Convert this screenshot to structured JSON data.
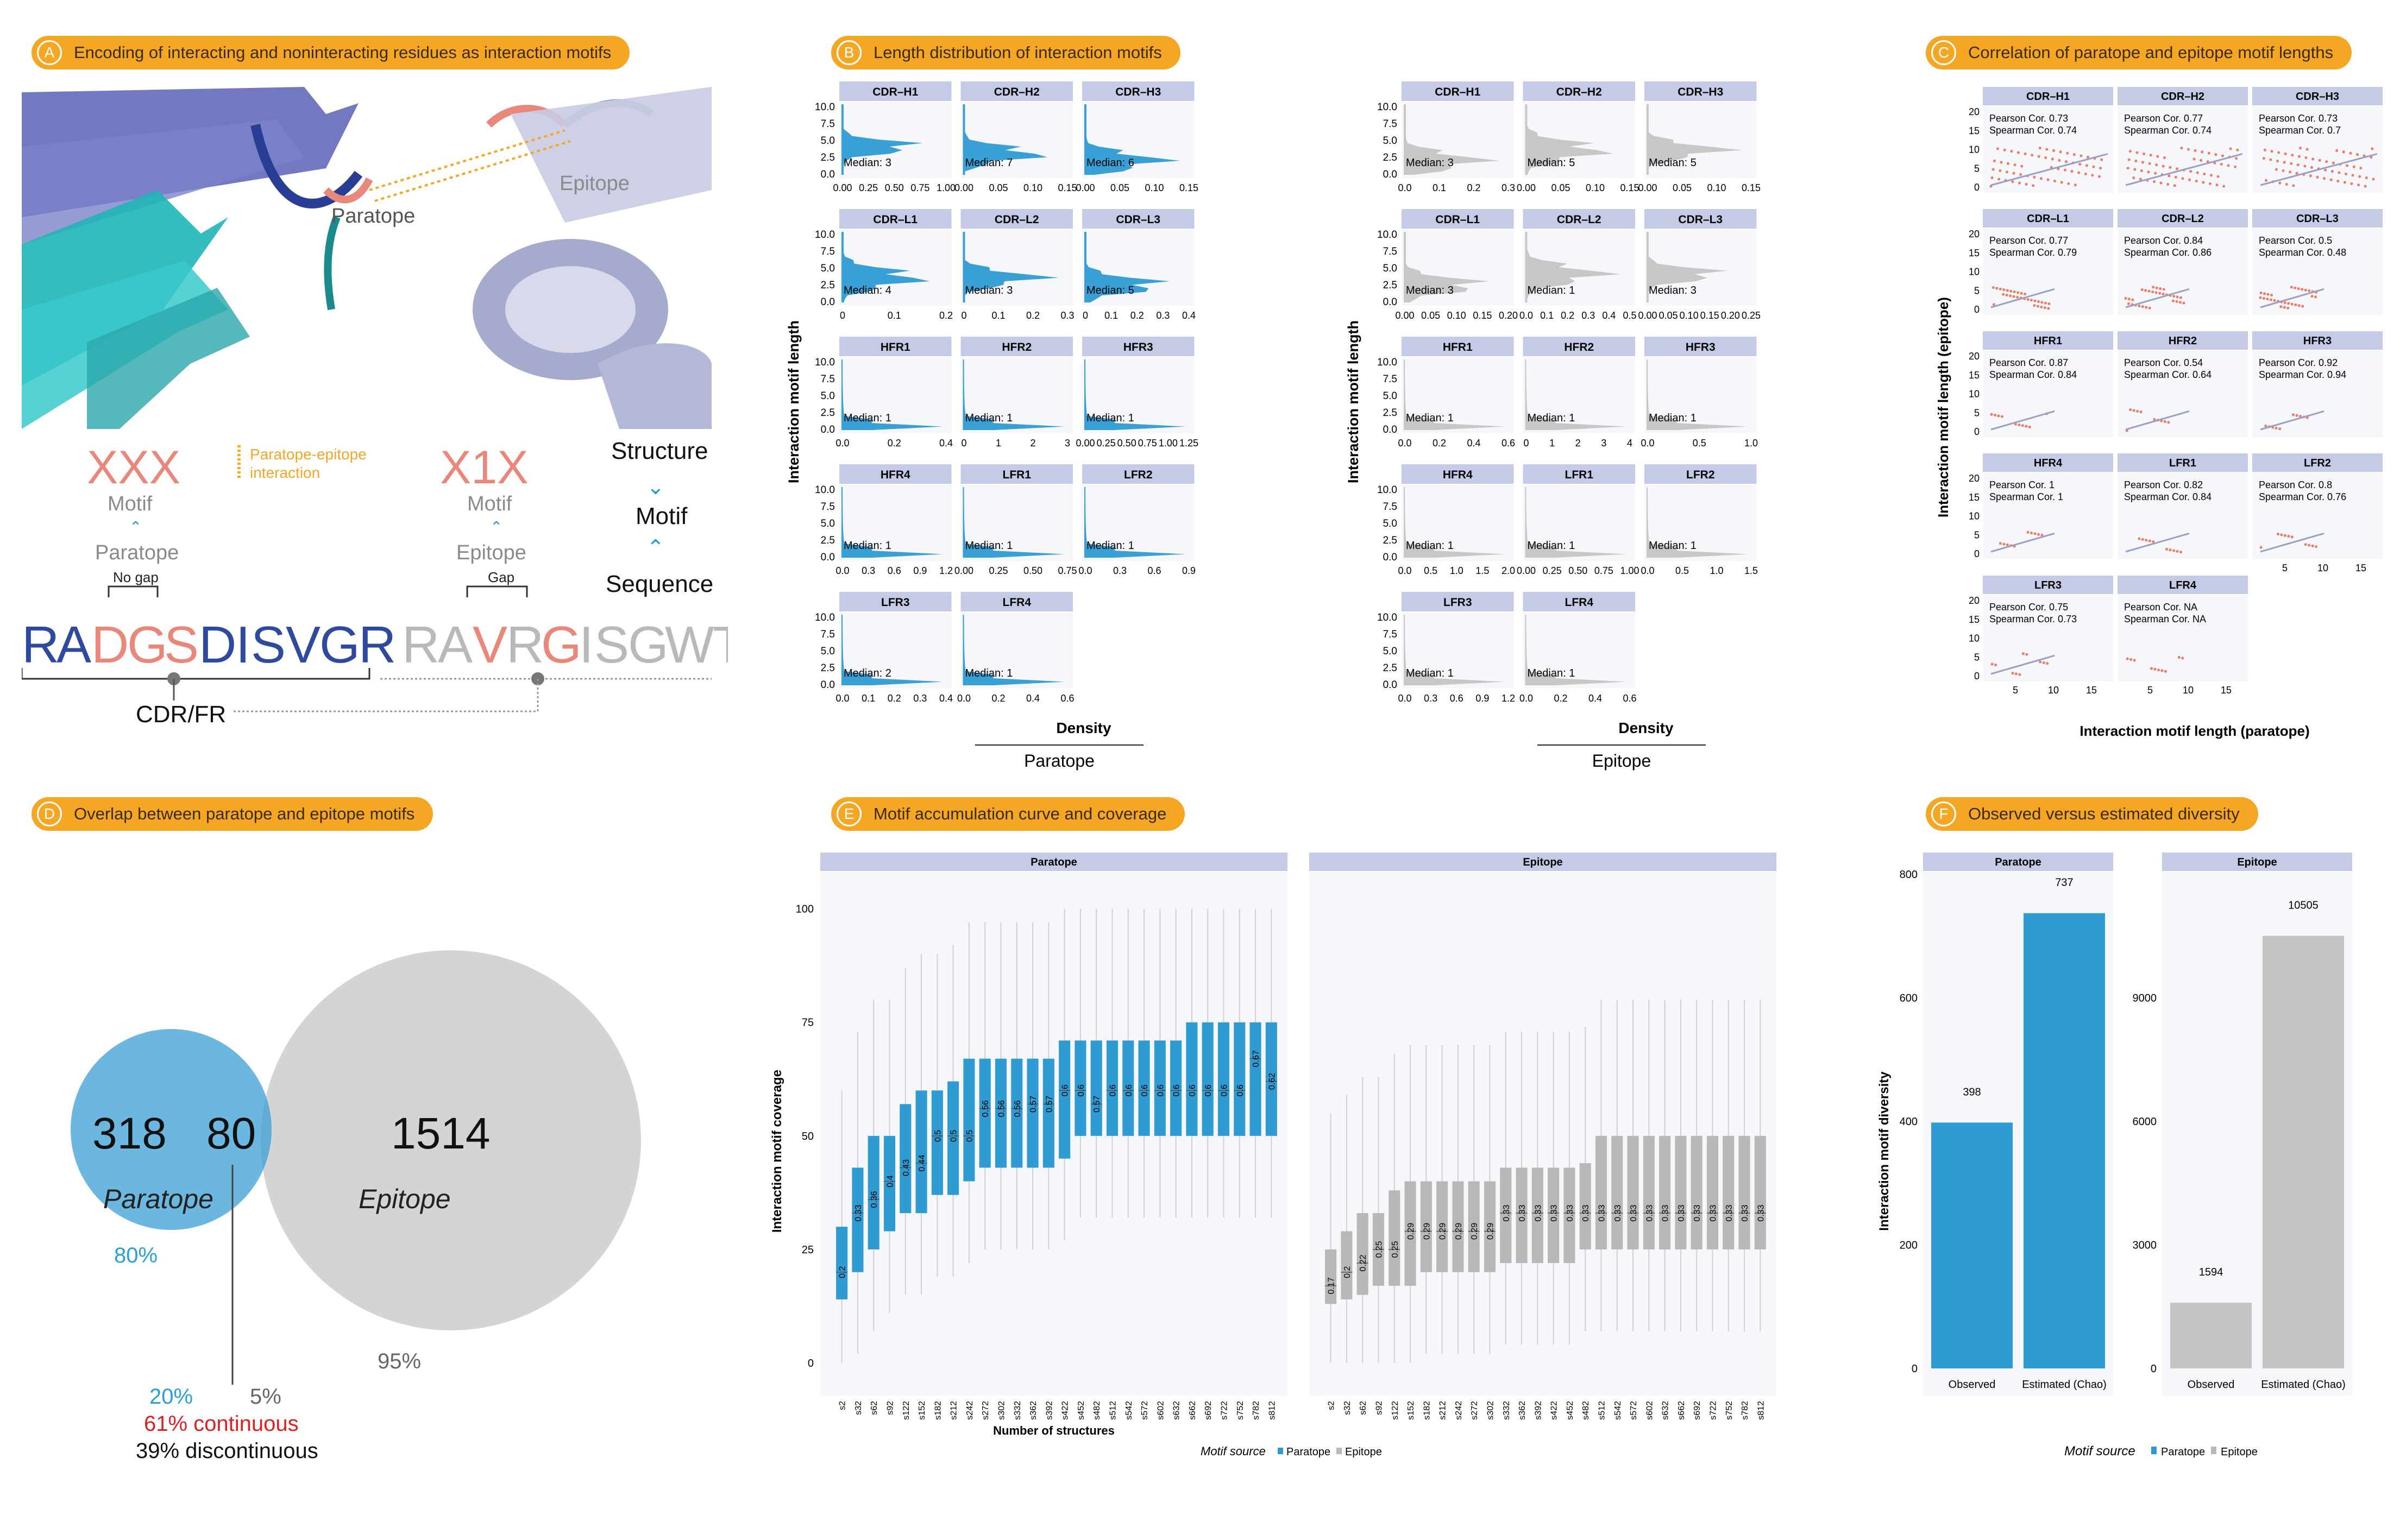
{
  "panels": {
    "A": {
      "letter": "A",
      "title": "Encoding of interacting and noninteracting residues as interaction motifs"
    },
    "B": {
      "letter": "B",
      "title": "Length distribution of interaction motifs"
    },
    "C": {
      "letter": "C",
      "title": "Correlation of paratope and epitope motif lengths"
    },
    "D": {
      "letter": "D",
      "title": "Overlap between paratope and epitope motifs"
    },
    "E": {
      "letter": "E",
      "title": "Motif accumulation curve and coverage"
    },
    "F": {
      "letter": "F",
      "title": "Observed versus estimated diversity"
    }
  },
  "panelA": {
    "paratope_label": "Paratope",
    "epitope_label": "Epitope",
    "motif_left": "XXX",
    "motif_right": "X1X",
    "motif_word": "Motif",
    "paratope_word": "Paratope",
    "epitope_word": "Epitope",
    "interaction_legend": "Paratope-epitope interaction",
    "no_gap": "No gap",
    "gap": "Gap",
    "structure": "Structure",
    "motif": "Motif",
    "sequence": "Sequence",
    "seq_left": [
      "R",
      "A",
      "D",
      "G",
      "S",
      "D",
      "I",
      "S",
      "V",
      "G",
      "R"
    ],
    "seq_right": [
      "R",
      "A",
      "V",
      "R",
      "G",
      "I",
      "S",
      "G",
      "W",
      "T"
    ],
    "cdr_fr": "CDR/FR",
    "colors": {
      "blue": "#2e4a9e",
      "salmon": "#e8877a",
      "grey": "#b9b9b9",
      "orange": "#f5a623",
      "cyan": "#2a9fd6"
    }
  },
  "panelB": {
    "ylabel": "Interaction motif length",
    "xlabel": "Density",
    "groups": [
      {
        "name": "Paratope",
        "color": "#2e9bd3",
        "facets": [
          {
            "name": "CDR–H1",
            "median": "Median: 3",
            "ticks": [
              "0.00",
              "0.25",
              "0.50",
              "0.75",
              "1.00"
            ],
            "ylim": 10
          },
          {
            "name": "CDR–H2",
            "median": "Median: 7",
            "ticks": [
              "0.00",
              "0.05",
              "0.10",
              "0.15"
            ],
            "ylim": 12
          },
          {
            "name": "CDR–H3",
            "median": "Median: 6",
            "ticks": [
              "0.00",
              "0.05",
              "0.10",
              "0.15"
            ],
            "ylim": 10
          },
          {
            "name": "CDR–L1",
            "median": "Median: 4",
            "ticks": [
              "0",
              "0.1",
              "0.2"
            ],
            "ylim": 10
          },
          {
            "name": "CDR–L2",
            "median": "Median: 3",
            "ticks": [
              "0",
              "0.1",
              "0.2",
              "0.3"
            ],
            "ylim": 10
          },
          {
            "name": "CDR–L3",
            "median": "Median: 5",
            "ticks": [
              "0",
              "0.1",
              "0.2",
              "0.3",
              "0.4"
            ],
            "ylim": 10
          },
          {
            "name": "HFR1",
            "median": "Median: 1",
            "ticks": [
              "0.0",
              "0.2",
              "0.4"
            ],
            "ylim": 10
          },
          {
            "name": "HFR2",
            "median": "Median: 1",
            "ticks": [
              "0",
              "1",
              "2",
              "3"
            ],
            "ylim": 10
          },
          {
            "name": "HFR3",
            "median": "Median: 1",
            "ticks": [
              "0.00",
              "0.25",
              "0.50",
              "0.75",
              "1.00",
              "1.25"
            ],
            "ylim": 10
          },
          {
            "name": "HFR4",
            "median": "Median: 1",
            "ticks": [
              "0.0",
              "0.3",
              "0.6",
              "0.9",
              "1.2"
            ],
            "ylim": 10
          },
          {
            "name": "LFR1",
            "median": "Median: 1",
            "ticks": [
              "0.00",
              "0.25",
              "0.50",
              "0.75"
            ],
            "ylim": 10
          },
          {
            "name": "LFR2",
            "median": "Median: 1",
            "ticks": [
              "0.0",
              "0.3",
              "0.6",
              "0.9"
            ],
            "ylim": 10
          },
          {
            "name": "LFR3",
            "median": "Median: 2",
            "ticks": [
              "0.0",
              "0.1",
              "0.2",
              "0.3",
              "0.4"
            ],
            "ylim": 10
          },
          {
            "name": "LFR4",
            "median": "Median: 1",
            "ticks": [
              "0.0",
              "0.2",
              "0.4",
              "0.6"
            ],
            "ylim": 10
          }
        ]
      },
      {
        "name": "Epitope",
        "color": "#c4c4c4",
        "facets": [
          {
            "name": "CDR–H1",
            "median": "Median: 3",
            "ticks": [
              "0.0",
              "0.1",
              "0.2",
              "0.3"
            ],
            "ylim": 10
          },
          {
            "name": "CDR–H2",
            "median": "Median: 5",
            "ticks": [
              "0.00",
              "0.05",
              "0.10",
              "0.15"
            ],
            "ylim": 10
          },
          {
            "name": "CDR–H3",
            "median": "Median: 5",
            "ticks": [
              "0.00",
              "0.05",
              "0.10",
              "0.15"
            ],
            "ylim": 10
          },
          {
            "name": "CDR–L1",
            "median": "Median: 3",
            "ticks": [
              "0.00",
              "0.05",
              "0.10",
              "0.15",
              "0.20"
            ],
            "ylim": 10
          },
          {
            "name": "CDR–L2",
            "median": "Median: 1",
            "ticks": [
              "0.0",
              "0.1",
              "0.2",
              "0.3",
              "0.4",
              "0.5"
            ],
            "ylim": 10
          },
          {
            "name": "CDR–L3",
            "median": "Median: 3",
            "ticks": [
              "0.00",
              "0.05",
              "0.10",
              "0.15",
              "0.20",
              "0.25"
            ],
            "ylim": 10
          },
          {
            "name": "HFR1",
            "median": "Median: 1",
            "ticks": [
              "0.0",
              "0.2",
              "0.4",
              "0.6"
            ],
            "ylim": 10
          },
          {
            "name": "HFR2",
            "median": "Median: 1",
            "ticks": [
              "0",
              "1",
              "2",
              "3",
              "4"
            ],
            "ylim": 10
          },
          {
            "name": "HFR3",
            "median": "Median: 1",
            "ticks": [
              "0.0",
              "0.5",
              "1.0"
            ],
            "ylim": 10
          },
          {
            "name": "HFR4",
            "median": "Median: 1",
            "ticks": [
              "0.0",
              "0.5",
              "1.0",
              "1.5",
              "2.0"
            ],
            "ylim": 10
          },
          {
            "name": "LFR1",
            "median": "Median: 1",
            "ticks": [
              "0.00",
              "0.25",
              "0.50",
              "0.75",
              "1.00"
            ],
            "ylim": 10
          },
          {
            "name": "LFR2",
            "median": "Median: 1",
            "ticks": [
              "0.0",
              "0.5",
              "1.0",
              "1.5"
            ],
            "ylim": 10
          },
          {
            "name": "LFR3",
            "median": "Median: 1",
            "ticks": [
              "0.0",
              "0.3",
              "0.6",
              "0.9",
              "1.2"
            ],
            "ylim": 10
          },
          {
            "name": "LFR4",
            "median": "Median: 1",
            "ticks": [
              "0.0",
              "0.2",
              "0.4",
              "0.6"
            ],
            "ylim": 10
          }
        ]
      }
    ],
    "yticks": [
      "0.0",
      "2.5",
      "5.0",
      "7.5",
      "10.0"
    ]
  },
  "panelC": {
    "ylabel": "Interaction motif length (epitope)",
    "xlabel": "Interaction motif length (paratope)",
    "facets": [
      {
        "name": "CDR–H1",
        "pearson": "Pearson Cor. 0.73",
        "spearman": "Spearman Cor. 0.74"
      },
      {
        "name": "CDR–H2",
        "pearson": "Pearson Cor. 0.77",
        "spearman": "Spearman Cor. 0.74"
      },
      {
        "name": "CDR–H3",
        "pearson": "Pearson Cor. 0.73",
        "spearman": "Spearman Cor. 0.7"
      },
      {
        "name": "CDR–L1",
        "pearson": "Pearson Cor. 0.77",
        "spearman": "Spearman Cor. 0.79"
      },
      {
        "name": "CDR–L2",
        "pearson": "Pearson Cor. 0.84",
        "spearman": "Spearman Cor. 0.86"
      },
      {
        "name": "CDR–L3",
        "pearson": "Pearson Cor. 0.5",
        "spearman": "Spearman Cor. 0.48"
      },
      {
        "name": "HFR1",
        "pearson": "Pearson Cor. 0.87",
        "spearman": "Spearman Cor. 0.84"
      },
      {
        "name": "HFR2",
        "pearson": "Pearson Cor. 0.54",
        "spearman": "Spearman Cor. 0.64"
      },
      {
        "name": "HFR3",
        "pearson": "Pearson Cor. 0.92",
        "spearman": "Spearman Cor. 0.94"
      },
      {
        "name": "HFR4",
        "pearson": "Pearson Cor. 1",
        "spearman": "Spearman Cor. 1"
      },
      {
        "name": "LFR1",
        "pearson": "Pearson Cor. 0.82",
        "spearman": "Spearman Cor. 0.84"
      },
      {
        "name": "LFR2",
        "pearson": "Pearson Cor. 0.8",
        "spearman": "Spearman Cor. 0.76"
      },
      {
        "name": "LFR3",
        "pearson": "Pearson Cor. 0.75",
        "spearman": "Spearman Cor. 0.73"
      },
      {
        "name": "LFR4",
        "pearson": "Pearson Cor. NA",
        "spearman": "Spearman Cor. NA"
      }
    ],
    "yticks": [
      "0",
      "5",
      "10",
      "15",
      "20"
    ],
    "xticks": [
      "5",
      "10",
      "15"
    ]
  },
  "panelD": {
    "left_count": "318",
    "overlap_count": "80",
    "right_count": "1514",
    "left_name": "Paratope",
    "right_name": "Epitope",
    "left_pct": "80%",
    "right_pct": "95%",
    "overlap_left_pct": "20%",
    "overlap_right_pct": "5%",
    "continuous": "61% continuous",
    "discontinuous": "39% discontinuous"
  },
  "panelE": {
    "ylabel": "Interaction motif coverage",
    "xlabel": "Number of structures",
    "legend_title": "Motif source",
    "legend_items": [
      "Paratope",
      "Epitope"
    ],
    "yticks": [
      "0",
      "25",
      "50",
      "75",
      "100"
    ],
    "xticks": [
      "s2",
      "s32",
      "s62",
      "s92",
      "s122",
      "s152",
      "s182",
      "s212",
      "s242",
      "s272",
      "s302",
      "s332",
      "s362",
      "s392",
      "s422",
      "s452",
      "s482",
      "s512",
      "s542",
      "s572",
      "s602",
      "s632",
      "s662",
      "s692",
      "s722",
      "s752",
      "s782",
      "s812"
    ],
    "facets": [
      {
        "name": "Paratope",
        "color": "#2e9bd3",
        "labels": [
          "0.2",
          "0.33",
          "0.36",
          "0.4",
          "0.43",
          "0.44",
          "0.5",
          "0.5",
          "0.5",
          "0.56",
          "0.56",
          "0.56",
          "0.57",
          "0.57",
          "0.6",
          "0.6",
          "0.57",
          "0.6",
          "0.6",
          "0.6",
          "0.6",
          "0.6",
          "0.6",
          "0.6",
          "0.6",
          "0.6",
          "0.67",
          "0.62"
        ],
        "q1": [
          14,
          20,
          25,
          29,
          33,
          33,
          37,
          37,
          40,
          43,
          43,
          43,
          43,
          43,
          45,
          50,
          50,
          50,
          50,
          50,
          50,
          50,
          50,
          50,
          50,
          50,
          50,
          50
        ],
        "q3": [
          30,
          43,
          50,
          50,
          57,
          60,
          60,
          62,
          67,
          67,
          67,
          67,
          67,
          67,
          71,
          71,
          71,
          71,
          71,
          71,
          71,
          71,
          75,
          75,
          75,
          75,
          75,
          75
        ],
        "med": [
          20,
          33,
          36,
          40,
          43,
          44,
          50,
          50,
          50,
          56,
          56,
          56,
          57,
          57,
          60,
          60,
          57,
          60,
          60,
          60,
          60,
          60,
          60,
          60,
          60,
          60,
          67,
          62
        ]
      },
      {
        "name": "Epitope",
        "color": "#b8b8b8",
        "labels": [
          "0.17",
          "0.2",
          "0.22",
          "0.25",
          "0.25",
          "0.29",
          "0.29",
          "0.29",
          "0.29",
          "0.29",
          "0.29",
          "0.33",
          "0.33",
          "0.33",
          "0.33",
          "0.33",
          "0.33",
          "0.33",
          "0.33",
          "0.33",
          "0.33",
          "0.33",
          "0.33",
          "0.33",
          "0.33",
          "0.33",
          "0.33",
          "0.33"
        ],
        "q1": [
          13,
          14,
          15,
          17,
          17,
          17,
          20,
          20,
          20,
          20,
          20,
          22,
          22,
          22,
          22,
          22,
          25,
          25,
          25,
          25,
          25,
          25,
          25,
          25,
          25,
          25,
          25,
          25
        ],
        "q3": [
          25,
          29,
          33,
          33,
          38,
          40,
          40,
          40,
          40,
          40,
          40,
          43,
          43,
          43,
          43,
          43,
          44,
          50,
          50,
          50,
          50,
          50,
          50,
          50,
          50,
          50,
          50,
          50
        ],
        "med": [
          17,
          20,
          22,
          25,
          25,
          29,
          29,
          29,
          29,
          29,
          29,
          33,
          33,
          33,
          33,
          33,
          33,
          33,
          33,
          33,
          33,
          33,
          33,
          33,
          33,
          33,
          33,
          33
        ]
      }
    ]
  },
  "chart_data": [
    {
      "type": "bar",
      "title": "Paratope",
      "categories": [
        "Observed",
        "Estimated (Chao)"
      ],
      "values": [
        398,
        737
      ],
      "ylabel": "Interaction motif diversity",
      "ylim": [
        0,
        800
      ],
      "yticks": [
        "0",
        "200",
        "400",
        "600",
        "800"
      ],
      "color": "#2e9bd3"
    },
    {
      "type": "bar",
      "title": "Epitope",
      "categories": [
        "Observed",
        "Estimated (Chao)"
      ],
      "values": [
        1594,
        10505
      ],
      "ylim": [
        0,
        12000
      ],
      "yticks": [
        "0",
        "3000",
        "6000",
        "9000"
      ],
      "color": "#c4c4c4"
    }
  ],
  "panelF_legend": {
    "title": "Motif source",
    "items": [
      "Paratope",
      "Epitope"
    ]
  }
}
